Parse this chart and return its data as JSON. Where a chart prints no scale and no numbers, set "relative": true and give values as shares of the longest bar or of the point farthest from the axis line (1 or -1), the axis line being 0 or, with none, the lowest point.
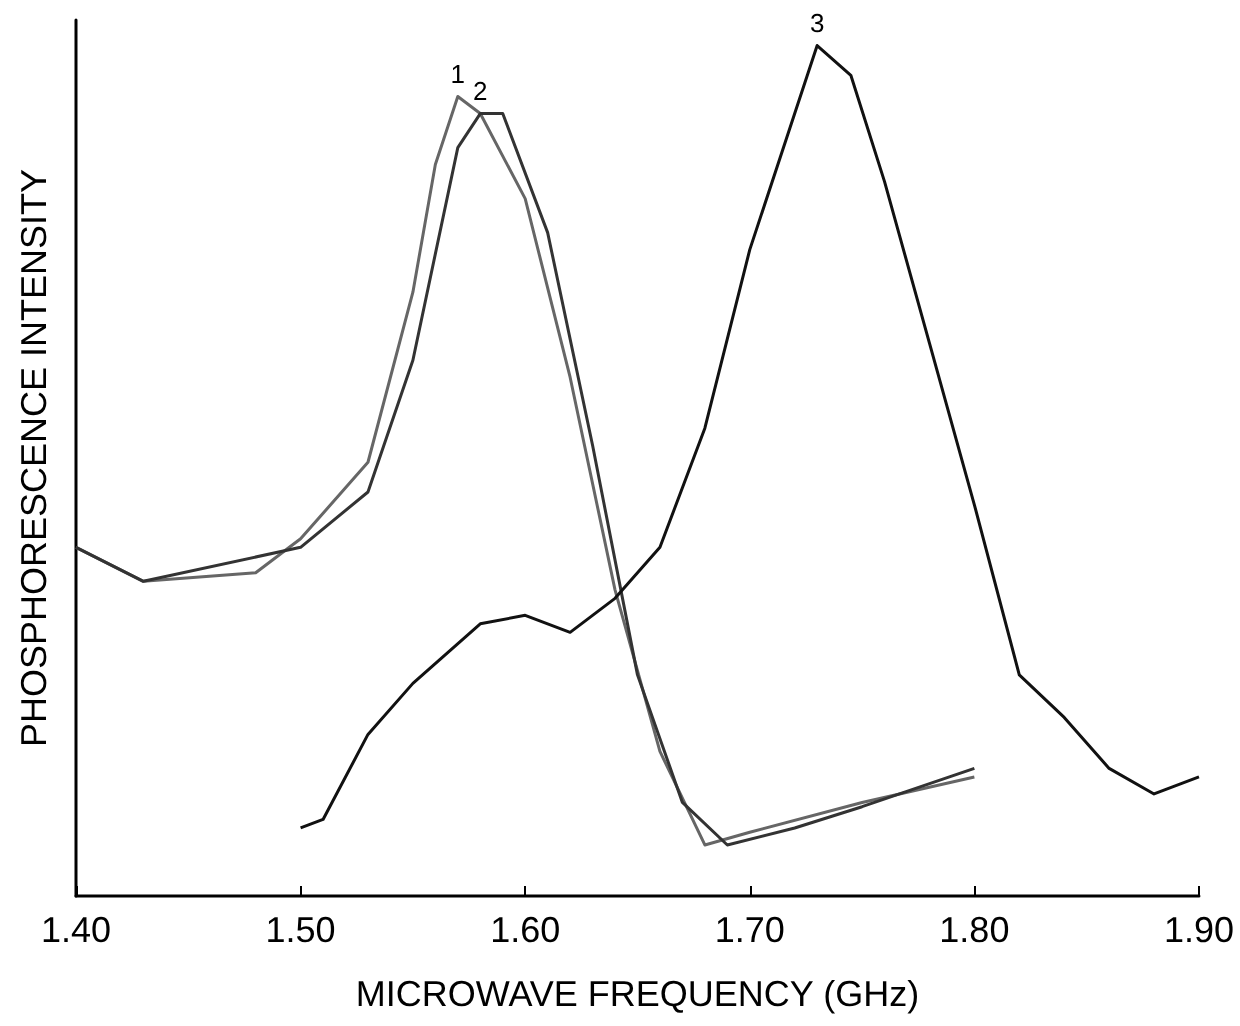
{
  "chart_data": {
    "type": "line",
    "xlabel": "MICROWAVE FREQUENCY (GHz)",
    "ylabel": "PHOSPHORESCENCE INTENSITY",
    "relative": true,
    "xlim": [
      1.4,
      1.9
    ],
    "xticks": [
      {
        "value": 1.4,
        "label": "1.40"
      },
      {
        "value": 1.5,
        "label": "1.50"
      },
      {
        "value": 1.6,
        "label": "1.60"
      },
      {
        "value": 1.7,
        "label": "1.70"
      },
      {
        "value": 1.8,
        "label": "1.80"
      },
      {
        "value": 1.9,
        "label": "1.90"
      }
    ],
    "tick_labels": "x",
    "grid": false,
    "marker": "none",
    "line_style": "solid",
    "series": [
      {
        "name": "1",
        "color": "#666666",
        "x": [
          1.4,
          1.43,
          1.48,
          1.5,
          1.53,
          1.55,
          1.56,
          1.57,
          1.58,
          1.6,
          1.62,
          1.64,
          1.66,
          1.68,
          1.7,
          1.75,
          1.8
        ],
        "values": [
          0.41,
          0.37,
          0.38,
          0.42,
          0.51,
          0.71,
          0.86,
          0.94,
          0.92,
          0.82,
          0.61,
          0.36,
          0.17,
          0.06,
          0.075,
          0.11,
          0.14
        ]
      },
      {
        "name": "2",
        "color": "#333333",
        "x": [
          1.4,
          1.43,
          1.5,
          1.53,
          1.55,
          1.57,
          1.58,
          1.59,
          1.61,
          1.63,
          1.65,
          1.67,
          1.69,
          1.72,
          1.75,
          1.8
        ],
        "values": [
          0.41,
          0.37,
          0.41,
          0.475,
          0.63,
          0.88,
          0.92,
          0.92,
          0.78,
          0.53,
          0.26,
          0.11,
          0.06,
          0.08,
          0.105,
          0.15
        ]
      },
      {
        "name": "3",
        "color": "#111111",
        "x": [
          1.5,
          1.51,
          1.53,
          1.55,
          1.58,
          1.6,
          1.62,
          1.64,
          1.66,
          1.68,
          1.7,
          1.72,
          1.73,
          1.745,
          1.76,
          1.78,
          1.8,
          1.82,
          1.84,
          1.86,
          1.88,
          1.9
        ],
        "values": [
          0.08,
          0.09,
          0.19,
          0.25,
          0.32,
          0.33,
          0.31,
          0.35,
          0.41,
          0.55,
          0.76,
          0.92,
          1.0,
          0.965,
          0.84,
          0.65,
          0.46,
          0.26,
          0.21,
          0.15,
          0.12,
          0.14
        ]
      }
    ]
  }
}
